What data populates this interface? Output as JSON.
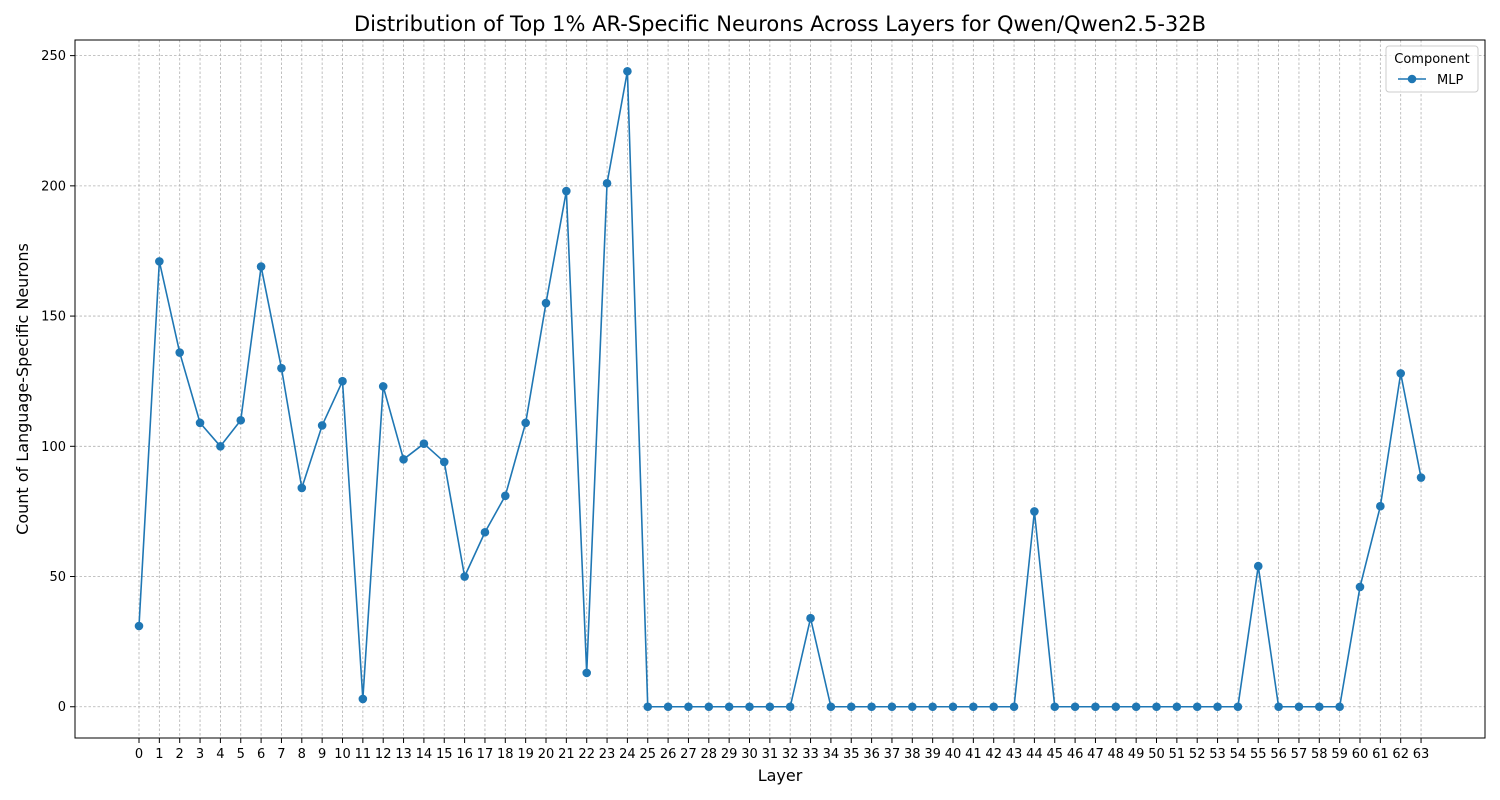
{
  "chart_data": {
    "type": "line",
    "title": "Distribution of Top 1% AR-Specific Neurons Across Layers for Qwen/Qwen2.5-32B",
    "xlabel": "Layer",
    "ylabel": "Count of Language-Specific Neurons",
    "x": [
      0,
      1,
      2,
      3,
      4,
      5,
      6,
      7,
      8,
      9,
      10,
      11,
      12,
      13,
      14,
      15,
      16,
      17,
      18,
      19,
      20,
      21,
      22,
      23,
      24,
      25,
      26,
      27,
      28,
      29,
      30,
      31,
      32,
      33,
      34,
      35,
      36,
      37,
      38,
      39,
      40,
      41,
      42,
      43,
      44,
      45,
      46,
      47,
      48,
      49,
      50,
      51,
      52,
      53,
      54,
      55,
      56,
      57,
      58,
      59,
      60,
      61,
      62,
      63
    ],
    "ylim": [
      -12,
      256
    ],
    "yticks": [
      0,
      50,
      100,
      150,
      200,
      250
    ],
    "grid": true,
    "legend": {
      "title": "Component",
      "placement": "top-right"
    },
    "series": [
      {
        "name": "MLP",
        "color": "#1f77b4",
        "marker": "circle",
        "values": [
          31,
          171,
          136,
          109,
          100,
          110,
          169,
          130,
          84,
          108,
          125,
          3,
          123,
          95,
          101,
          94,
          50,
          67,
          81,
          109,
          155,
          198,
          13,
          201,
          244,
          0,
          0,
          0,
          0,
          0,
          0,
          0,
          0,
          34,
          0,
          0,
          0,
          0,
          0,
          0,
          0,
          0,
          0,
          0,
          75,
          0,
          0,
          0,
          0,
          0,
          0,
          0,
          0,
          0,
          0,
          54,
          0,
          0,
          0,
          0,
          46,
          77,
          128,
          88
        ]
      }
    ]
  }
}
